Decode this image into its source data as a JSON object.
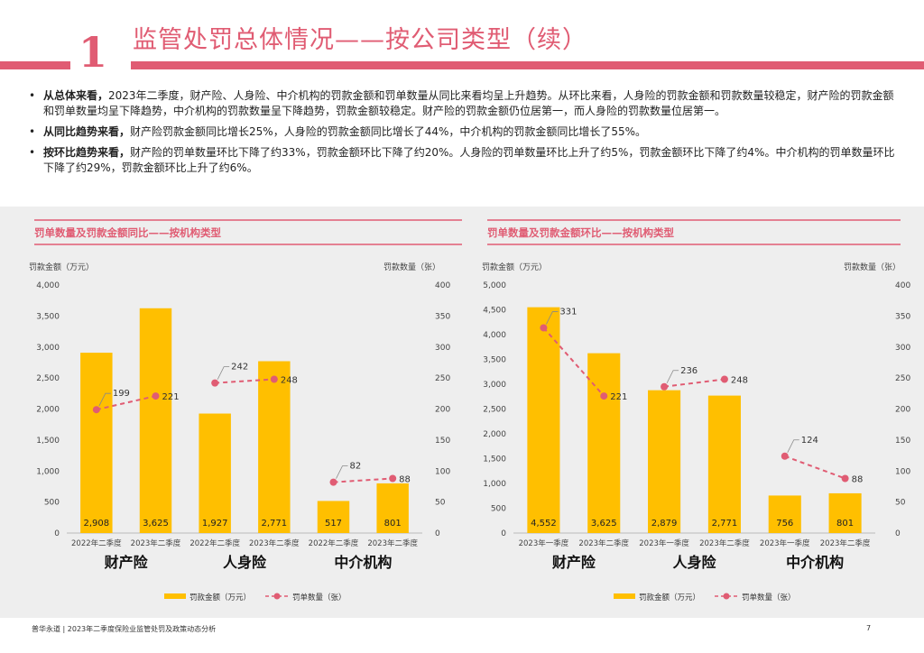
{
  "header": {
    "number": "1",
    "title": "监管处罚总体情况——按公司类型（续）"
  },
  "bullets": [
    {
      "lead": "从总体来看，",
      "text": "2023年二季度，财产险、人身险、中介机构的罚款金额和罚单数量从同比来看均呈上升趋势。从环比来看，人身险的罚款金额和罚款数量较稳定，财产险的罚款金额和罚单数量均呈下降趋势，中介机构的罚款数量呈下降趋势，罚款金额较稳定。财产险的罚款金额仍位居第一，而人身险的罚款数量位居第一。"
    },
    {
      "lead": "从同比趋势来看，",
      "text": "财产险罚款金额同比增长25%，人身险的罚款金额同比增长了44%，中介机构的罚款金额同比增长了55%。"
    },
    {
      "lead": "按环比趋势来看，",
      "text": "财产险的罚单数量环比下降了约33%，罚款金额环比下降了约20%。人身险的罚单数量环比上升了约5%，罚款金额环比下降了约4%。中介机构的罚单数量环比下降了约29%，罚款金额环比上升了约6%。"
    }
  ],
  "colors": {
    "accent": "#e05c73",
    "bar": "#ffbf00",
    "line": "#e05c73",
    "panel": "#eeeeee"
  },
  "chart_data": [
    {
      "type": "bar",
      "title": "罚单数量及罚款金额同比——按机构类型",
      "ylabel": "罚款金额（万元）",
      "y2label": "罚款数量（张）",
      "ylim": [
        0,
        4000
      ],
      "y2lim": [
        0,
        400
      ],
      "yticks": [
        "0",
        "500",
        "1,000",
        "1,500",
        "2,000",
        "2,500",
        "3,000",
        "3,500",
        "4,000"
      ],
      "y2ticks": [
        "0",
        "50",
        "100",
        "150",
        "200",
        "250",
        "300",
        "350",
        "400"
      ],
      "categories": [
        "2022年二季度",
        "2023年二季度",
        "2022年二季度",
        "2023年二季度",
        "2022年二季度",
        "2023年二季度"
      ],
      "groups": [
        "财产险",
        "人身险",
        "中介机构"
      ],
      "series": [
        {
          "name": "罚款金额（万元）",
          "type": "bar",
          "axis": "left",
          "values": [
            2908,
            3625,
            1927,
            2771,
            517,
            801
          ],
          "labels": [
            "2,908",
            "3,625",
            "1,927",
            "2,771",
            "517",
            "801"
          ]
        },
        {
          "name": "罚单数量（张）",
          "type": "line",
          "axis": "right",
          "values": [
            199,
            221,
            242,
            248,
            82,
            88
          ],
          "labels": [
            "199",
            "221",
            "242",
            "248",
            "82",
            "88"
          ]
        }
      ],
      "legend": "bottom"
    },
    {
      "type": "bar",
      "title": "罚单数量及罚款金额环比——按机构类型",
      "ylabel": "罚款金额（万元）",
      "y2label": "罚款数量（张）",
      "ylim": [
        0,
        5000
      ],
      "y2lim": [
        0,
        400
      ],
      "yticks": [
        "0",
        "500",
        "1,000",
        "1,500",
        "2,000",
        "2,500",
        "3,000",
        "3,500",
        "4,000",
        "4,500",
        "5,000"
      ],
      "y2ticks": [
        "0",
        "50",
        "100",
        "150",
        "200",
        "250",
        "300",
        "350",
        "400"
      ],
      "categories": [
        "2023年一季度",
        "2023年二季度",
        "2023年一季度",
        "2023年二季度",
        "2023年一季度",
        "2023年二季度"
      ],
      "groups": [
        "财产险",
        "人身险",
        "中介机构"
      ],
      "series": [
        {
          "name": "罚款金额（万元）",
          "type": "bar",
          "axis": "left",
          "values": [
            4552,
            3625,
            2879,
            2771,
            756,
            801
          ],
          "labels": [
            "4,552",
            "3,625",
            "2,879",
            "2,771",
            "756",
            "801"
          ]
        },
        {
          "name": "罚单数量（张）",
          "type": "line",
          "axis": "right",
          "values": [
            331,
            221,
            236,
            248,
            124,
            88
          ],
          "labels": [
            "331",
            "221",
            "236",
            "248",
            "124",
            "88"
          ]
        }
      ],
      "legend": "bottom"
    }
  ],
  "footer": {
    "text": "普华永道 | 2023年二季度保险业监管处罚及政策动态分析",
    "page": "7"
  }
}
